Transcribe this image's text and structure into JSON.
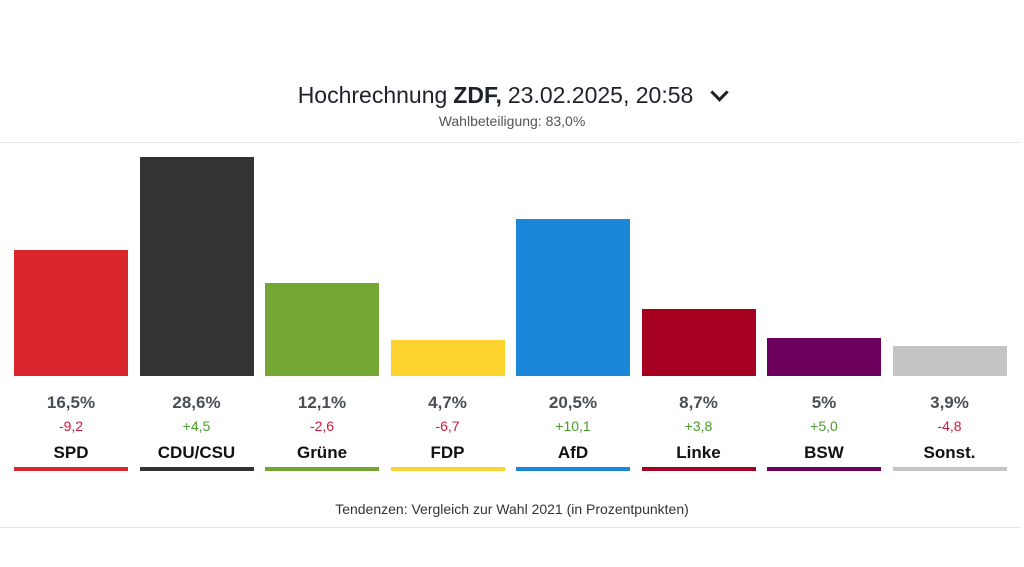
{
  "header": {
    "title_prefix": "Hochrechnung",
    "title_source": "ZDF,",
    "title_datetime": "23.02.2025, 20:58",
    "subtitle": "Wahlbeteiligung: 83,0%",
    "dropdown_icon": "chevron-down-icon"
  },
  "footnote": "Tendenzen: Vergleich zur Wahl 2021 (in Prozentpunkten)",
  "colors": {
    "positive": "#4a9a2a",
    "negative": "#d0183a"
  },
  "chart_data": {
    "type": "bar",
    "title": "",
    "ylim": [
      0,
      28.6
    ],
    "grid": false,
    "categories": [
      "SPD",
      "CDU/CSU",
      "Grüne",
      "FDP",
      "AfD",
      "Linke",
      "BSW",
      "Sonst."
    ],
    "values": [
      16.5,
      28.6,
      12.1,
      4.7,
      20.5,
      8.7,
      5,
      3.9
    ],
    "value_labels": [
      "16,5%",
      "28,6%",
      "12,1%",
      "4,7%",
      "20,5%",
      "8,7%",
      "5%",
      "3,9%"
    ],
    "changes": [
      -9.2,
      4.5,
      -2.6,
      -6.7,
      10.1,
      3.8,
      5.0,
      -4.8
    ],
    "change_labels": [
      "-9,2",
      "+4,5",
      "-2,6",
      "-6,7",
      "+10,1",
      "+3,8",
      "+5,0",
      "-4,8"
    ],
    "colors": [
      "#d9262c",
      "#333333",
      "#74a634",
      "#fcd22f",
      "#1b87d9",
      "#a5001f",
      "#6c005c",
      "#c4c4c4"
    ]
  }
}
